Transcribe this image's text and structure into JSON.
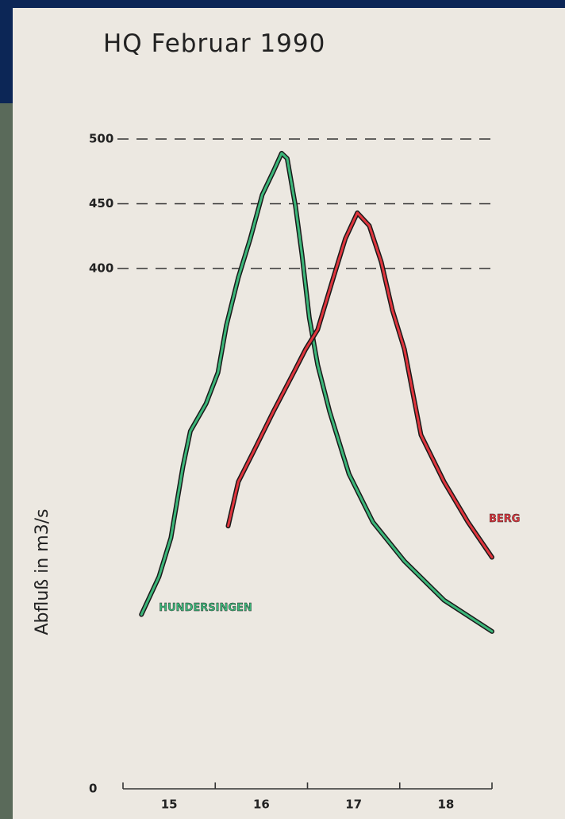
{
  "chart_data": {
    "type": "line",
    "title": "HQ Februar 1990",
    "y_label": "Abfluß in m3/s",
    "xlim": [
      14.5,
      18.5
    ],
    "xticks": [
      15,
      16,
      17,
      18
    ],
    "ylim": [
      0,
      500
    ],
    "yticks": [
      0,
      400,
      450,
      500
    ],
    "axis_break": [
      0,
      400
    ],
    "grid": true,
    "series": [
      {
        "name": "HUNDERSINGEN",
        "color": "#3cb77a",
        "x": [
          14.7,
          14.89,
          15.02,
          15.15,
          15.23,
          15.4,
          15.53,
          15.62,
          15.75,
          15.88,
          16.01,
          16.13,
          16.22,
          16.28,
          16.37,
          16.44,
          16.52,
          16.61,
          16.74,
          16.95,
          17.21,
          17.55,
          17.98,
          18.5
        ],
        "values": [
          134,
          163,
          193,
          248,
          275,
          296,
          320,
          356,
          393,
          423,
          457,
          475,
          489,
          485,
          448,
          411,
          362,
          326,
          290,
          242,
          205,
          175,
          145,
          121
        ]
      },
      {
        "name": "BERG",
        "color": "#e0353d",
        "x": [
          15.64,
          15.75,
          15.92,
          16.13,
          16.35,
          16.48,
          16.61,
          16.78,
          16.91,
          17.04,
          17.17,
          17.3,
          17.42,
          17.55,
          17.73,
          17.98,
          18.24,
          18.5
        ],
        "values": [
          202,
          236,
          260,
          290,
          320,
          338,
          353,
          393,
          423,
          443,
          433,
          405,
          368,
          338,
          272,
          236,
          205,
          178
        ]
      }
    ]
  }
}
